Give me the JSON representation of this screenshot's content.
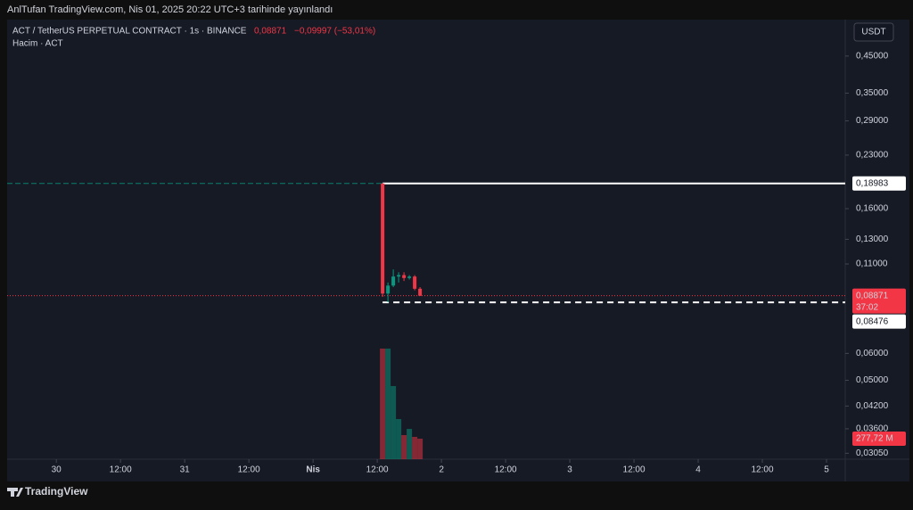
{
  "header": {
    "published": "AnlTufan TradingView.com, Nis 01, 2025 20:22 UTC+3 tarihinde yayınlandı"
  },
  "legend": {
    "symbol": "ACT / TetherUS PERPETUAL CONTRACT · 1s · BINANCE",
    "price": "0,08871",
    "change": "−0,09997 (−53,01%)",
    "volume": "Hacim · ACT"
  },
  "currency_button": "USDT",
  "footer": {
    "brand": "TradingView"
  },
  "chart_data": {
    "type": "candlestick",
    "log_scale": true,
    "x": [
      61,
      62,
      63,
      64,
      65,
      66,
      67,
      68
    ],
    "candles": {
      "open": [
        0.1898,
        0.09,
        0.095,
        0.101,
        0.102,
        0.1,
        0.101,
        0.093
      ],
      "high": [
        0.1898,
        0.097,
        0.106,
        0.104,
        0.104,
        0.102,
        0.102,
        0.094
      ],
      "low": [
        0.088,
        0.0848,
        0.094,
        0.097,
        0.098,
        0.099,
        0.092,
        0.0885
      ],
      "close": [
        0.09,
        0.095,
        0.101,
        0.102,
        0.1,
        0.101,
        0.093,
        0.08871
      ]
    },
    "volume": [
      1497,
      1497,
      990,
      543,
      326,
      410,
      302,
      277.72
    ],
    "volume_ylim": [
      0,
      5950
    ],
    "up_color": "#089981",
    "down_color": "#f23645",
    "xlim": [
      -9.2,
      147.5
    ],
    "xticks": [
      {
        "value": 0,
        "label": "30"
      },
      {
        "value": 12,
        "label": "12:00"
      },
      {
        "value": 24,
        "label": "31"
      },
      {
        "value": 36,
        "label": "12:00"
      },
      {
        "value": 48,
        "label": "Nis"
      },
      {
        "value": 60,
        "label": "12:00"
      },
      {
        "value": 72,
        "label": "2"
      },
      {
        "value": 84,
        "label": "12:00"
      },
      {
        "value": 96,
        "label": "3"
      },
      {
        "value": 108,
        "label": "12:00"
      },
      {
        "value": 120,
        "label": "4"
      },
      {
        "value": 132,
        "label": "12:00"
      },
      {
        "value": 144,
        "label": "5"
      }
    ],
    "ylim": [
      0.0293,
      0.576
    ],
    "yticks": [
      {
        "value": 0.45,
        "label": "0,45000"
      },
      {
        "value": 0.35,
        "label": "0,35000"
      },
      {
        "value": 0.29,
        "label": "0,29000"
      },
      {
        "value": 0.23,
        "label": "0,23000"
      },
      {
        "value": 0.16,
        "label": "0,16000"
      },
      {
        "value": 0.13,
        "label": "0,13000"
      },
      {
        "value": 0.11,
        "label": "0,11000"
      },
      {
        "value": 0.06,
        "label": "0,06000"
      },
      {
        "value": 0.05,
        "label": "0,05000"
      },
      {
        "value": 0.042,
        "label": "0,04200"
      },
      {
        "value": 0.036,
        "label": "0,03600"
      },
      {
        "value": 0.0305,
        "label": "0,03050"
      }
    ],
    "high_line": {
      "value": 0.18983,
      "label": "0,18983"
    },
    "low_line": {
      "value": 0.08476,
      "label": "0,08476"
    },
    "last_price": {
      "value": 0.08871,
      "label": "0,08871",
      "countdown": "37:02"
    },
    "last_volume": {
      "value": 277.72,
      "label": "277,72 M"
    }
  }
}
